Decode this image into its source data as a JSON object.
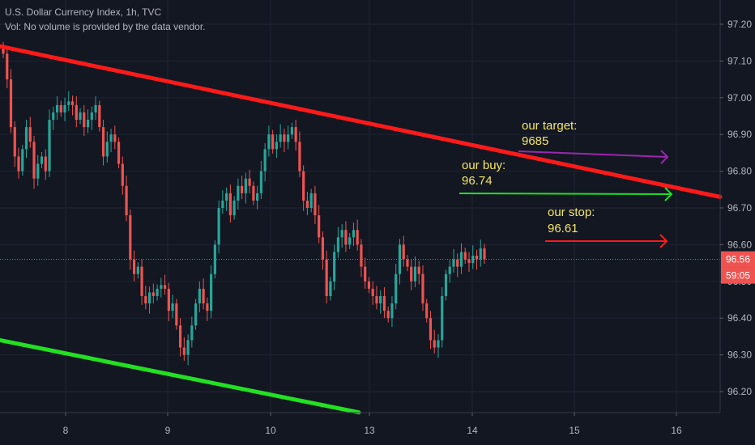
{
  "header": {
    "title": "U.S. Dollar Currency Index, 1h, TVC",
    "volume_note": "Vol: No volume is provided by the data vendor."
  },
  "price_axis": {
    "labels": [
      "97.20",
      "97.10",
      "97.00",
      "96.90",
      "96.80",
      "96.70",
      "96.60",
      "96.50",
      "96.40",
      "96.30",
      "96.20"
    ]
  },
  "time_axis": {
    "labels": [
      "8",
      "9",
      "10",
      "13",
      "14",
      "15",
      "16"
    ]
  },
  "last_price": {
    "value": "96.56",
    "countdown": "59:05"
  },
  "annotations": {
    "target_label": "our target:",
    "target_value": "9685",
    "buy_label": "our buy:",
    "buy_value": "96.74",
    "stop_label": "our stop:",
    "stop_value": "96.61"
  },
  "colors": {
    "background": "#131722",
    "up_candle": "#26a69a",
    "down_candle": "#ef5350",
    "resistance_line": "#ff1a1a",
    "support_line": "#22e022",
    "target_arrow": "#9c27b0",
    "buy_arrow": "#22e022",
    "stop_arrow": "#ff1a1a",
    "annotation_text": "#f5e663"
  },
  "chart_data": {
    "type": "candlestick",
    "title": "U.S. Dollar Currency Index, 1h, TVC",
    "y_range": [
      96.15,
      97.25
    ],
    "close_series": [
      97.12,
      97.05,
      96.92,
      96.84,
      96.8,
      96.86,
      96.92,
      96.88,
      96.78,
      96.82,
      96.84,
      96.8,
      96.94,
      96.96,
      96.98,
      96.96,
      96.98,
      96.99,
      96.98,
      96.94,
      96.96,
      96.92,
      96.94,
      96.96,
      96.98,
      96.92,
      96.84,
      96.88,
      96.9,
      96.88,
      96.82,
      96.76,
      96.68,
      96.56,
      96.52,
      96.54,
      96.46,
      96.44,
      96.47,
      96.46,
      96.48,
      96.49,
      96.48,
      96.42,
      96.44,
      96.38,
      96.32,
      96.3,
      96.34,
      96.38,
      96.44,
      96.48,
      96.44,
      96.42,
      96.52,
      96.6,
      96.7,
      96.72,
      96.74,
      96.68,
      96.72,
      96.76,
      96.74,
      96.78,
      96.76,
      96.72,
      96.74,
      96.8,
      96.86,
      96.9,
      96.86,
      96.88,
      96.9,
      96.88,
      96.9,
      96.92,
      96.88,
      96.8,
      96.72,
      96.7,
      96.74,
      96.68,
      96.62,
      96.56,
      96.46,
      96.5,
      96.58,
      96.62,
      96.64,
      96.6,
      96.62,
      96.64,
      96.6,
      96.54,
      96.5,
      96.48,
      96.46,
      96.44,
      96.46,
      96.42,
      96.4,
      96.44,
      96.52,
      96.6,
      96.56,
      96.54,
      96.5,
      96.54,
      96.52,
      96.44,
      96.4,
      96.34,
      96.32,
      96.34,
      96.46,
      96.52,
      96.54,
      96.56,
      96.54,
      96.58,
      96.56,
      96.55,
      96.57,
      96.56,
      96.59,
      96.56
    ],
    "support_line": {
      "start": 96.34,
      "end": 96.15
    },
    "resistance_line": {
      "start": 97.14,
      "end": 96.73
    },
    "levels": {
      "target": 96.85,
      "buy": 96.74,
      "stop": 96.61,
      "last": 96.56
    }
  }
}
